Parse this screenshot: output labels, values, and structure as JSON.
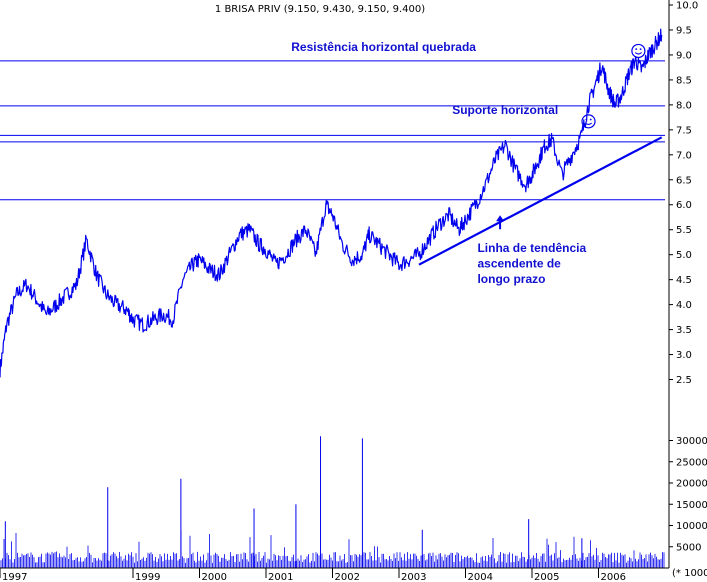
{
  "chart_data": {
    "type": "line",
    "title": "1 BRISA PRIV (9.150, 9.430, 9.150, 9.400)",
    "price_axis": {
      "min": 2.25,
      "max": 10.0,
      "ticks": [
        "10.0",
        "9.5",
        "9.0",
        "8.5",
        "8.0",
        "7.5",
        "7.0",
        "6.5",
        "6.0",
        "5.5",
        "5.0",
        "4.5",
        "4.0",
        "3.5",
        "3.0",
        "2.5"
      ]
    },
    "volume_axis": {
      "min": 0,
      "max": 32000,
      "ticks": [
        "30000",
        "25000",
        "20000",
        "15000",
        "10000",
        "5000"
      ],
      "unit_label": "(* 1000)"
    },
    "x_axis": {
      "start_year": 1997,
      "end_year": 2007,
      "labels": [
        "1997",
        "1999",
        "2000",
        "2001",
        "2002",
        "2003",
        "2004",
        "2005",
        "2006"
      ]
    },
    "horizontal_lines": [
      {
        "name": "Resistência horizontal quebrada",
        "value": 8.88
      },
      {
        "name": "Suporte horizontal",
        "value": 7.98
      },
      {
        "name": "",
        "value": 7.39
      },
      {
        "name": "",
        "value": 7.26
      },
      {
        "name": "",
        "value": 6.1
      }
    ],
    "trendline": {
      "x": [
        2003.3,
        2006.95
      ],
      "y": [
        4.8,
        7.35
      ]
    },
    "price_series": {
      "name": "1 BRISA PRIV",
      "x": [
        1997.0,
        1997.1,
        1997.25,
        1997.4,
        1997.55,
        1997.7,
        1997.85,
        1998.0,
        1998.15,
        1998.3,
        1998.45,
        1998.6,
        1998.75,
        1998.9,
        1999.0,
        1999.15,
        1999.3,
        1999.45,
        1999.6,
        1999.75,
        1999.9,
        2000.0,
        2000.15,
        2000.3,
        2000.45,
        2000.6,
        2000.75,
        2000.9,
        2001.0,
        2001.15,
        2001.3,
        2001.45,
        2001.6,
        2001.75,
        2001.9,
        2002.0,
        2002.15,
        2002.3,
        2002.45,
        2002.55,
        2002.7,
        2002.85,
        2003.0,
        2003.15,
        2003.3,
        2003.45,
        2003.6,
        2003.75,
        2003.9,
        2004.0,
        2004.15,
        2004.3,
        2004.45,
        2004.6,
        2004.75,
        2004.9,
        2005.0,
        2005.1,
        2005.2,
        2005.3,
        2005.45,
        2005.6,
        2005.75,
        2005.85,
        2005.95,
        2006.05,
        2006.15,
        2006.25,
        2006.35,
        2006.45,
        2006.55,
        2006.65,
        2006.75,
        2006.85,
        2006.95
      ],
      "y": [
        2.7,
        3.6,
        4.2,
        4.4,
        4.1,
        3.8,
        4.0,
        4.2,
        4.4,
        5.3,
        4.6,
        4.2,
        4.0,
        3.9,
        3.7,
        3.6,
        3.7,
        3.8,
        3.7,
        4.5,
        4.8,
        4.9,
        4.7,
        4.6,
        5.0,
        5.4,
        5.5,
        5.2,
        5.1,
        4.8,
        5.0,
        5.3,
        5.5,
        5.0,
        6.0,
        5.8,
        5.2,
        4.9,
        5.0,
        5.4,
        5.2,
        5.0,
        4.8,
        4.9,
        5.0,
        5.3,
        5.6,
        5.8,
        5.5,
        5.7,
        6.0,
        6.4,
        6.9,
        7.2,
        6.7,
        6.4,
        6.6,
        6.9,
        7.2,
        7.3,
        6.6,
        7.0,
        7.4,
        8.0,
        8.4,
        8.8,
        8.3,
        8.0,
        8.2,
        8.6,
        8.9,
        8.7,
        9.0,
        9.2,
        9.4
      ]
    },
    "volume_spikes": [
      {
        "x": 1997.08,
        "v": 11000
      },
      {
        "x": 1998.62,
        "v": 19000
      },
      {
        "x": 1999.72,
        "v": 21000
      },
      {
        "x": 2000.82,
        "v": 14000
      },
      {
        "x": 2001.45,
        "v": 15000
      },
      {
        "x": 2001.82,
        "v": 31000
      },
      {
        "x": 2002.45,
        "v": 30500
      },
      {
        "x": 2003.35,
        "v": 9000
      },
      {
        "x": 2004.95,
        "v": 11500
      },
      {
        "x": 2005.75,
        "v": 7000
      }
    ],
    "annotations": [
      {
        "text": "Resistência horizontal quebrada",
        "x": 2001.38,
        "y": 9.08
      },
      {
        "text": "Suporte horizontal",
        "x": 2003.8,
        "y": 7.82
      },
      {
        "text": "Linha de tendência",
        "x": 2004.18,
        "y": 5.05
      },
      {
        "text": "ascendente de",
        "x": 2004.18,
        "y": 4.74
      },
      {
        "text": "longo prazo",
        "x": 2004.18,
        "y": 4.43
      }
    ],
    "markers": [
      {
        "type": "arrow-up",
        "x": 2004.52,
        "y": 5.75
      },
      {
        "type": "smiley",
        "x": 2005.85,
        "y": 7.67
      },
      {
        "type": "smiley",
        "x": 2006.6,
        "y": 9.08
      }
    ],
    "grid": false,
    "legend": "none"
  }
}
